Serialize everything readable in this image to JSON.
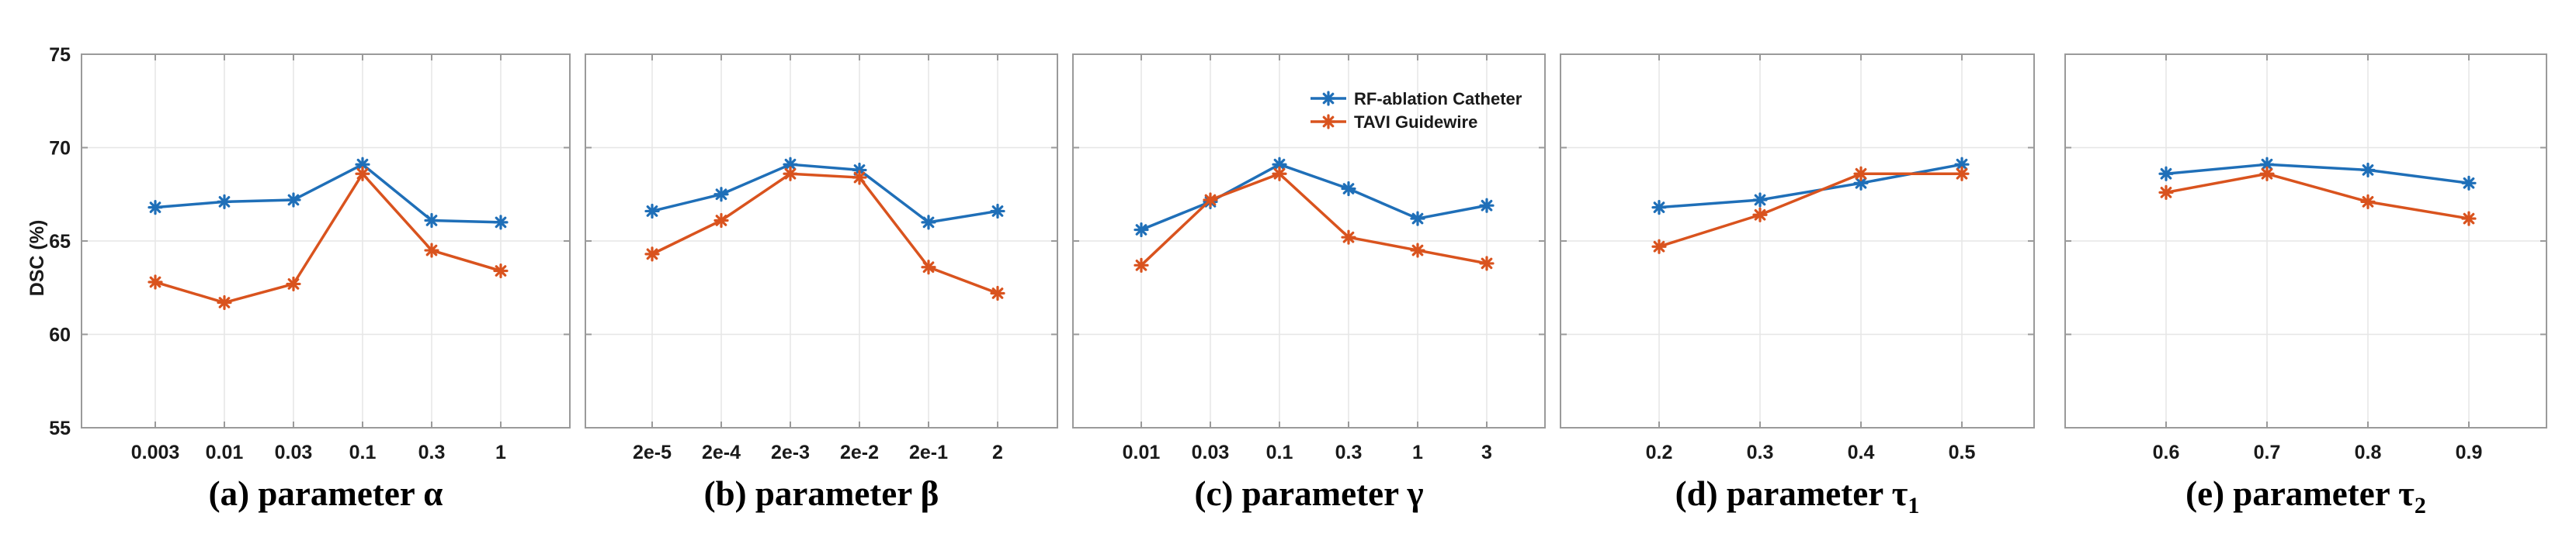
{
  "colors": {
    "series_1": "#1f6fb8",
    "series_2": "#d9531e",
    "grid": "#e6e6e6",
    "axis": "#9a9a9a"
  },
  "shared": {
    "ylabel": "DSC (%)",
    "ylim": [
      55,
      75
    ],
    "yticks": [
      "55",
      "60",
      "65",
      "70",
      "75"
    ]
  },
  "legend": [
    {
      "name": "RF-ablation Catheter",
      "marker_icon": "asterisk-icon"
    },
    {
      "name": "TAVI Guidewire",
      "marker_icon": "asterisk-icon"
    }
  ],
  "chart_data": [
    {
      "type": "line",
      "caption": {
        "prefix": "(a)  parameter ",
        "symbol": "α",
        "sub": ""
      },
      "categories": [
        "0.003",
        "0.01",
        "0.03",
        "0.1",
        "0.3",
        "1"
      ],
      "series": [
        {
          "name": "RF-ablation Catheter",
          "values": [
            66.8,
            67.1,
            67.2,
            69.1,
            66.1,
            66.0
          ]
        },
        {
          "name": "TAVI Guidewire",
          "values": [
            62.8,
            61.7,
            62.7,
            68.6,
            64.5,
            63.4
          ]
        }
      ]
    },
    {
      "type": "line",
      "caption": {
        "prefix": "(b) parameter ",
        "symbol": "β",
        "sub": ""
      },
      "categories": [
        "2e-5",
        "2e-4",
        "2e-3",
        "2e-2",
        "2e-1",
        "2"
      ],
      "series": [
        {
          "name": "RF-ablation Catheter",
          "values": [
            66.6,
            67.5,
            69.1,
            68.8,
            66.0,
            66.6
          ]
        },
        {
          "name": "TAVI Guidewire",
          "values": [
            64.3,
            66.1,
            68.6,
            68.4,
            63.6,
            62.2
          ]
        }
      ]
    },
    {
      "type": "line",
      "caption": {
        "prefix": "(c) parameter ",
        "symbol": "γ",
        "sub": ""
      },
      "categories": [
        "0.01",
        "0.03",
        "0.1",
        "0.3",
        "1",
        "3"
      ],
      "legend": true,
      "series": [
        {
          "name": "RF-ablation Catheter",
          "values": [
            65.6,
            67.1,
            69.1,
            67.8,
            66.2,
            66.9
          ]
        },
        {
          "name": "TAVI Guidewire",
          "values": [
            63.7,
            67.2,
            68.6,
            65.2,
            64.5,
            63.8
          ]
        }
      ]
    },
    {
      "type": "line",
      "caption": {
        "prefix": "(d) parameter ",
        "symbol": "τ",
        "sub": "1"
      },
      "categories": [
        "0.2",
        "0.3",
        "0.4",
        "0.5"
      ],
      "series": [
        {
          "name": "RF-ablation Catheter",
          "values": [
            66.8,
            67.2,
            68.1,
            69.1
          ]
        },
        {
          "name": "TAVI Guidewire",
          "values": [
            64.7,
            66.4,
            68.6,
            68.6
          ]
        }
      ]
    },
    {
      "type": "line",
      "caption": {
        "prefix": "(e) parameter ",
        "symbol": "τ",
        "sub": "2"
      },
      "categories": [
        "0.6",
        "0.7",
        "0.8",
        "0.9"
      ],
      "series": [
        {
          "name": "RF-ablation Catheter",
          "values": [
            68.6,
            69.1,
            68.8,
            68.1
          ]
        },
        {
          "name": "TAVI Guidewire",
          "values": [
            67.6,
            68.6,
            67.1,
            66.2
          ]
        }
      ]
    }
  ]
}
